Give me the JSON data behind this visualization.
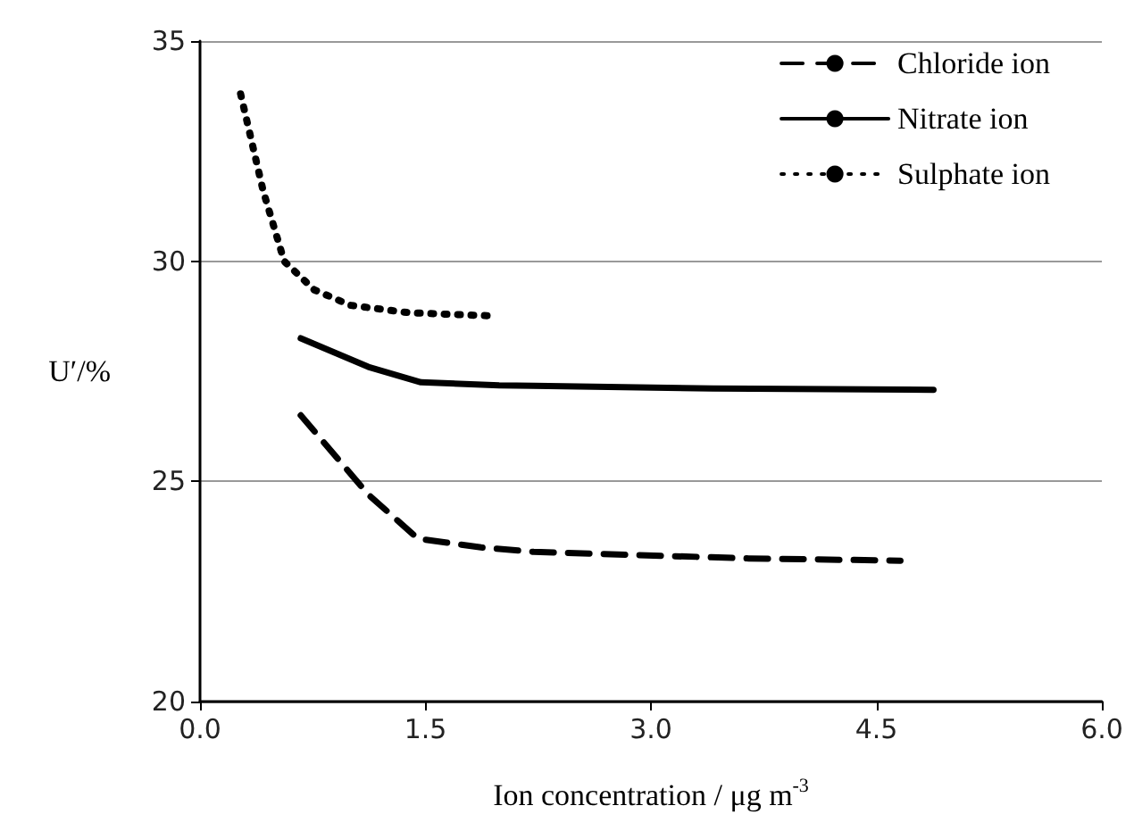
{
  "chart_data": {
    "type": "line",
    "xlabel": "Ion concentration / μg m$^{-3}$",
    "ylabel": "U′/%",
    "xlim": [
      0,
      6
    ],
    "xticks": [
      {
        "value": 0,
        "label": "0.0"
      },
      {
        "value": 1.5,
        "label": "1.5"
      },
      {
        "value": 3,
        "label": "3.0"
      },
      {
        "value": 4.5,
        "label": "4.5"
      },
      {
        "value": 6,
        "label": "6.0"
      }
    ],
    "ylim": [
      20,
      35
    ],
    "yticks": [
      20,
      25,
      30,
      35
    ],
    "grid": "y",
    "legend": "top right",
    "marker": "none",
    "series": [
      {
        "name": "Chloride ion",
        "color": "#000000",
        "line_style": "dashed",
        "x": [
          0.67,
          1.12,
          1.45,
          1.87,
          2.22,
          3.65,
          4.66
        ],
        "values": [
          26.5,
          24.7,
          23.7,
          23.5,
          23.4,
          23.25,
          23.2
        ]
      },
      {
        "name": "Nitrate ion",
        "color": "#000000",
        "line_style": "solid",
        "x": [
          0.67,
          1.12,
          1.47,
          1.99,
          2.22,
          3.41,
          4.88
        ],
        "values": [
          28.25,
          27.6,
          27.25,
          27.18,
          27.17,
          27.11,
          27.08
        ]
      },
      {
        "name": "Sulphate ion",
        "color": "#000000",
        "line_style": "dotted",
        "x": [
          0.27,
          0.42,
          0.56,
          0.76,
          1.0,
          1.39,
          1.93
        ],
        "values": [
          33.8,
          31.6,
          30.0,
          29.35,
          29.0,
          28.83,
          28.76
        ]
      }
    ]
  }
}
